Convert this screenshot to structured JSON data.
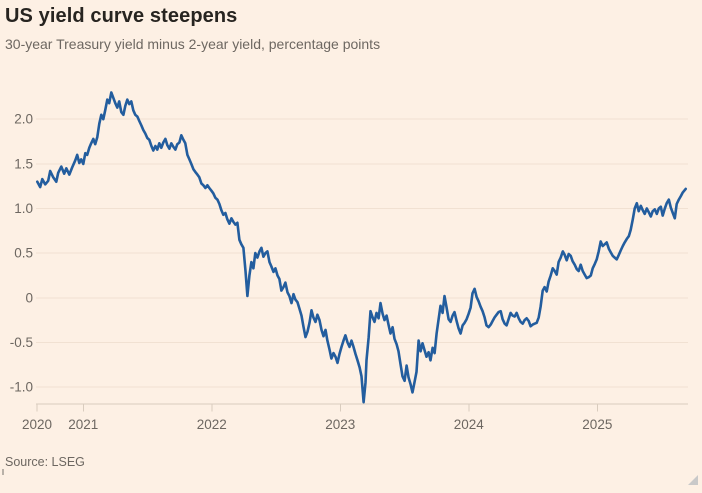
{
  "header": {
    "title": "US yield curve steepens",
    "subtitle": "30-year Treasury yield minus 2-year yield, percentage points"
  },
  "source": "Source: LSEG",
  "colors": {
    "background": "#fdf0e4",
    "title": "#272420",
    "muted": "#6d6761",
    "gridline": "#f1e1d2",
    "axis": "#d9ccbe",
    "line": "#235d9e",
    "resize_handle": "#c9c9c9"
  },
  "chart_data": {
    "type": "line",
    "title": "US yield curve steepens",
    "subtitle": "30-year Treasury yield minus 2-year yield, percentage points",
    "ylabel": "percentage points",
    "xlabel": "",
    "grid": "horizontal",
    "legend": "none",
    "x_domain": [
      2020.64,
      2025.69
    ],
    "y_domain": [
      -1.19,
      2.35
    ],
    "y_ticks": [
      {
        "value": 2.0,
        "label": "2.0"
      },
      {
        "value": 1.5,
        "label": "1.5"
      },
      {
        "value": 1.0,
        "label": "1.0"
      },
      {
        "value": 0.5,
        "label": "0.5"
      },
      {
        "value": 0.0,
        "label": "0"
      },
      {
        "value": -0.5,
        "label": "-0.5"
      },
      {
        "value": -1.0,
        "label": "-1.0"
      }
    ],
    "x_ticks": [
      {
        "value": 2020.64,
        "label": "2020"
      },
      {
        "value": 2021,
        "label": "2021"
      },
      {
        "value": 2022,
        "label": "2022"
      },
      {
        "value": 2023,
        "label": "2023"
      },
      {
        "value": 2024,
        "label": "2024"
      },
      {
        "value": 2025,
        "label": "2025"
      }
    ],
    "series": [
      {
        "name": "30-year Treasury yield minus 2-year yield",
        "x": [
          2020.642,
          2020.665,
          2020.681,
          2020.704,
          2020.727,
          2020.743,
          2020.766,
          2020.79,
          2020.805,
          2020.829,
          2020.852,
          2020.868,
          2020.891,
          2020.914,
          2020.938,
          2020.953,
          2020.969,
          2020.984,
          2021.0,
          2021.016,
          2021.031,
          2021.047,
          2021.062,
          2021.078,
          2021.093,
          2021.109,
          2021.125,
          2021.14,
          2021.156,
          2021.171,
          2021.187,
          2021.202,
          2021.218,
          2021.234,
          2021.249,
          2021.265,
          2021.28,
          2021.296,
          2021.312,
          2021.327,
          2021.343,
          2021.358,
          2021.374,
          2021.389,
          2021.405,
          2021.421,
          2021.436,
          2021.452,
          2021.467,
          2021.483,
          2021.498,
          2021.514,
          2021.53,
          2021.545,
          2021.561,
          2021.576,
          2021.592,
          2021.607,
          2021.623,
          2021.639,
          2021.654,
          2021.67,
          2021.685,
          2021.701,
          2021.717,
          2021.732,
          2021.748,
          2021.763,
          2021.779,
          2021.794,
          2021.81,
          2021.826,
          2021.841,
          2021.857,
          2021.872,
          2021.888,
          2021.903,
          2021.919,
          2021.935,
          2021.95,
          2021.966,
          2021.981,
          2021.997,
          2022.012,
          2022.028,
          2022.044,
          2022.059,
          2022.075,
          2022.09,
          2022.106,
          2022.121,
          2022.137,
          2022.153,
          2022.168,
          2022.184,
          2022.199,
          2022.215,
          2022.23,
          2022.246,
          2022.262,
          2022.277,
          2022.293,
          2022.308,
          2022.324,
          2022.339,
          2022.355,
          2022.371,
          2022.386,
          2022.402,
          2022.417,
          2022.433,
          2022.449,
          2022.464,
          2022.48,
          2022.495,
          2022.511,
          2022.526,
          2022.542,
          2022.558,
          2022.573,
          2022.589,
          2022.604,
          2022.62,
          2022.636,
          2022.651,
          2022.667,
          2022.682,
          2022.698,
          2022.713,
          2022.729,
          2022.745,
          2022.76,
          2022.776,
          2022.791,
          2022.807,
          2022.822,
          2022.838,
          2022.854,
          2022.869,
          2022.885,
          2022.9,
          2022.916,
          2022.931,
          2022.947,
          2022.963,
          2022.978,
          2022.994,
          2023.009,
          2023.025,
          2023.04,
          2023.056,
          2023.072,
          2023.087,
          2023.103,
          2023.118,
          2023.134,
          2023.15,
          2023.165,
          2023.181,
          2023.196,
          2023.204,
          2023.22,
          2023.235,
          2023.251,
          2023.266,
          2023.282,
          2023.298,
          2023.313,
          2023.329,
          2023.344,
          2023.36,
          2023.375,
          2023.391,
          2023.407,
          2023.422,
          2023.438,
          2023.453,
          2023.469,
          2023.484,
          2023.5,
          2023.516,
          2023.531,
          2023.547,
          2023.562,
          2023.578,
          2023.593,
          2023.609,
          2023.625,
          2023.64,
          2023.656,
          2023.671,
          2023.687,
          2023.702,
          2023.718,
          2023.734,
          2023.749,
          2023.765,
          2023.78,
          2023.796,
          2023.811,
          2023.827,
          2023.843,
          2023.858,
          2023.874,
          2023.889,
          2023.905,
          2023.92,
          2023.936,
          2023.952,
          2023.967,
          2023.983,
          2023.998,
          2024.014,
          2024.029,
          2024.045,
          2024.061,
          2024.076,
          2024.092,
          2024.107,
          2024.123,
          2024.138,
          2024.154,
          2024.17,
          2024.185,
          2024.201,
          2024.216,
          2024.232,
          2024.248,
          2024.263,
          2024.279,
          2024.294,
          2024.31,
          2024.325,
          2024.341,
          2024.357,
          2024.372,
          2024.388,
          2024.403,
          2024.419,
          2024.434,
          2024.45,
          2024.466,
          2024.481,
          2024.497,
          2024.512,
          2024.528,
          2024.544,
          2024.559,
          2024.575,
          2024.59,
          2024.606,
          2024.621,
          2024.637,
          2024.653,
          2024.668,
          2024.684,
          2024.699,
          2024.715,
          2024.731,
          2024.746,
          2024.762,
          2024.777,
          2024.793,
          2024.808,
          2024.824,
          2024.84,
          2024.855,
          2024.871,
          2024.886,
          2024.902,
          2024.917,
          2024.933,
          2024.949,
          2024.964,
          2024.98,
          2024.995,
          2025.011,
          2025.026,
          2025.042,
          2025.058,
          2025.073,
          2025.089,
          2025.104,
          2025.12,
          2025.135,
          2025.151,
          2025.167,
          2025.182,
          2025.198,
          2025.213,
          2025.229,
          2025.245,
          2025.26,
          2025.276,
          2025.291,
          2025.307,
          2025.322,
          2025.338,
          2025.354,
          2025.369,
          2025.385,
          2025.4,
          2025.416,
          2025.431,
          2025.447,
          2025.463,
          2025.478,
          2025.494,
          2025.509,
          2025.525,
          2025.54,
          2025.556,
          2025.572,
          2025.587,
          2025.603,
          2025.618,
          2025.634,
          2025.65,
          2025.665,
          2025.688
        ],
        "y": [
          1.3,
          1.24,
          1.33,
          1.27,
          1.31,
          1.42,
          1.35,
          1.3,
          1.4,
          1.47,
          1.39,
          1.45,
          1.38,
          1.46,
          1.54,
          1.6,
          1.51,
          1.55,
          1.5,
          1.62,
          1.6,
          1.68,
          1.73,
          1.78,
          1.72,
          1.8,
          1.95,
          2.05,
          2.0,
          2.1,
          2.22,
          2.18,
          2.3,
          2.24,
          2.18,
          2.13,
          2.2,
          2.08,
          2.05,
          2.15,
          2.22,
          2.17,
          2.2,
          2.1,
          2.05,
          2.03,
          1.98,
          1.93,
          1.88,
          1.84,
          1.79,
          1.77,
          1.7,
          1.65,
          1.7,
          1.66,
          1.73,
          1.68,
          1.74,
          1.78,
          1.71,
          1.67,
          1.73,
          1.69,
          1.66,
          1.72,
          1.74,
          1.82,
          1.77,
          1.73,
          1.6,
          1.55,
          1.5,
          1.44,
          1.41,
          1.38,
          1.35,
          1.28,
          1.26,
          1.23,
          1.26,
          1.23,
          1.2,
          1.17,
          1.12,
          1.1,
          1.05,
          0.98,
          0.93,
          0.95,
          0.88,
          0.83,
          0.89,
          0.85,
          0.82,
          0.84,
          0.65,
          0.6,
          0.56,
          0.3,
          0.02,
          0.25,
          0.4,
          0.33,
          0.5,
          0.45,
          0.52,
          0.56,
          0.46,
          0.5,
          0.52,
          0.4,
          0.35,
          0.29,
          0.33,
          0.25,
          0.21,
          0.08,
          0.12,
          0.17,
          0.06,
          0.02,
          -0.06,
          0.04,
          -0.02,
          -0.05,
          -0.12,
          -0.2,
          -0.32,
          -0.44,
          -0.38,
          -0.28,
          -0.14,
          -0.22,
          -0.27,
          -0.19,
          -0.25,
          -0.36,
          -0.43,
          -0.36,
          -0.48,
          -0.58,
          -0.68,
          -0.62,
          -0.66,
          -0.73,
          -0.63,
          -0.55,
          -0.48,
          -0.42,
          -0.5,
          -0.55,
          -0.48,
          -0.55,
          -0.63,
          -0.7,
          -0.78,
          -0.88,
          -1.17,
          -0.95,
          -0.7,
          -0.45,
          -0.15,
          -0.22,
          -0.27,
          -0.17,
          -0.23,
          -0.06,
          -0.18,
          -0.25,
          -0.2,
          -0.3,
          -0.4,
          -0.33,
          -0.46,
          -0.52,
          -0.6,
          -0.75,
          -0.88,
          -0.93,
          -0.76,
          -0.89,
          -0.97,
          -1.06,
          -0.94,
          -0.83,
          -0.48,
          -0.6,
          -0.51,
          -0.59,
          -0.66,
          -0.61,
          -0.7,
          -0.56,
          -0.62,
          -0.4,
          -0.24,
          -0.09,
          -0.17,
          0.02,
          -0.11,
          -0.24,
          -0.27,
          -0.2,
          -0.16,
          -0.26,
          -0.34,
          -0.4,
          -0.31,
          -0.28,
          -0.24,
          -0.18,
          -0.11,
          0.05,
          0.1,
          0.01,
          -0.04,
          -0.1,
          -0.15,
          -0.22,
          -0.31,
          -0.33,
          -0.3,
          -0.26,
          -0.22,
          -0.19,
          -0.16,
          -0.15,
          -0.24,
          -0.29,
          -0.31,
          -0.24,
          -0.17,
          -0.2,
          -0.21,
          -0.17,
          -0.23,
          -0.27,
          -0.29,
          -0.25,
          -0.23,
          -0.26,
          -0.32,
          -0.3,
          -0.29,
          -0.28,
          -0.22,
          -0.1,
          0.08,
          0.12,
          0.07,
          0.18,
          0.25,
          0.33,
          0.3,
          0.26,
          0.4,
          0.45,
          0.52,
          0.48,
          0.42,
          0.49,
          0.47,
          0.41,
          0.37,
          0.32,
          0.3,
          0.37,
          0.3,
          0.26,
          0.22,
          0.23,
          0.25,
          0.33,
          0.38,
          0.43,
          0.52,
          0.63,
          0.58,
          0.6,
          0.62,
          0.55,
          0.51,
          0.47,
          0.45,
          0.43,
          0.48,
          0.53,
          0.58,
          0.62,
          0.66,
          0.69,
          0.76,
          0.88,
          1.0,
          1.06,
          0.97,
          1.03,
          0.98,
          0.94,
          1.0,
          0.96,
          0.91,
          0.97,
          0.99,
          0.94,
          1.0,
          1.02,
          0.92,
          1.0,
          1.06,
          1.1,
          1.01,
          0.95,
          0.89,
          1.05,
          1.1,
          1.14,
          1.18,
          1.22
        ]
      }
    ]
  }
}
